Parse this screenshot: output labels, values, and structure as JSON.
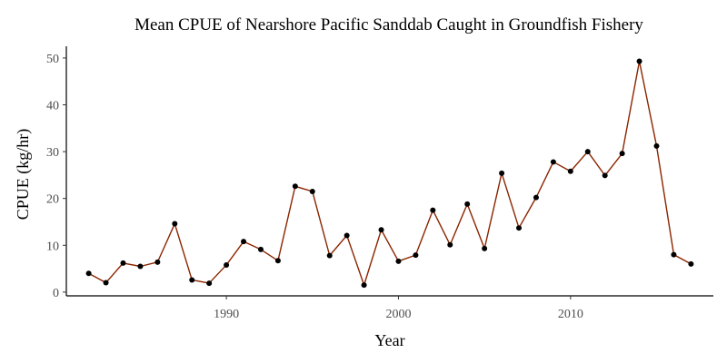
{
  "chart_data": {
    "type": "line",
    "title": "Mean CPUE of Nearshore Pacific Sanddab Caught in Groundfish Fishery",
    "xlabel": "Year",
    "ylabel": "CPUE (kg/hr)",
    "xlim": [
      1980.7,
      2018.3
    ],
    "ylim": [
      -0.8,
      52.5
    ],
    "x_ticks": [
      1990,
      2000,
      2010
    ],
    "y_ticks": [
      0,
      10,
      20,
      30,
      40,
      50
    ],
    "grid": false,
    "line_color": "#8B2500",
    "point_color": "#000000",
    "series": [
      {
        "x": [
          1982,
          1983,
          1984,
          1985,
          1986,
          1987,
          1988,
          1989,
          1990,
          1991,
          1992,
          1993,
          1994,
          1995,
          1996,
          1997,
          1998,
          1999,
          2000,
          2001,
          2002,
          2003,
          2004,
          2005,
          2006,
          2007,
          2008,
          2009,
          2010,
          2011,
          2012,
          2013,
          2014,
          2015,
          2016,
          2017
        ],
        "values": [
          4.0,
          2.0,
          6.2,
          5.5,
          6.4,
          14.6,
          2.6,
          1.9,
          5.8,
          10.8,
          9.1,
          6.7,
          22.6,
          21.5,
          7.8,
          12.1,
          1.5,
          13.3,
          6.6,
          7.9,
          17.5,
          10.1,
          18.8,
          9.3,
          25.4,
          13.7,
          20.2,
          27.8,
          25.8,
          30.0,
          24.9,
          29.6,
          49.3,
          31.2,
          8.0,
          6.0
        ]
      }
    ]
  }
}
